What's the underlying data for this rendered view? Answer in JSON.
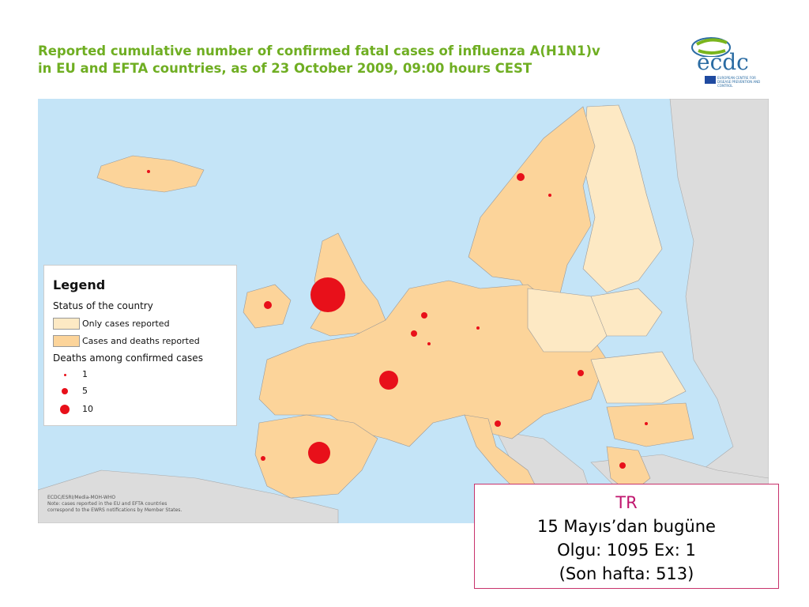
{
  "header": {
    "title_lines": [
      "Reported cumulative number of confirmed fatal cases of  influenza A(H1N1)v",
      "in EU and EFTA countries, as of 23 October 2009, 09:00 hours CEST"
    ],
    "logo": {
      "word": "ecdc",
      "subtitle": "EUROPEAN CENTRE FOR DISEASE PREVENTION AND CONTROL"
    }
  },
  "map": {
    "legend": {
      "title": "Legend",
      "status_heading": "Status of the country",
      "status_items": [
        "Only cases reported",
        "Cases and deaths reported"
      ],
      "deaths_heading": "Deaths among confirmed cases",
      "deaths_items": [
        1,
        5,
        10
      ]
    },
    "credits": [
      "ECDC/ESRI/Media-MOH-WHO",
      "Note: cases reported in the EU and EFTA countries",
      "correspond to the EWRS notifications by Member States."
    ]
  },
  "callout": {
    "lines": [
      "TR",
      "15 Mayıs’dan bugüne",
      "Olgu: 1095 Ex: 1",
      "(Son hafta: 513)"
    ]
  }
}
